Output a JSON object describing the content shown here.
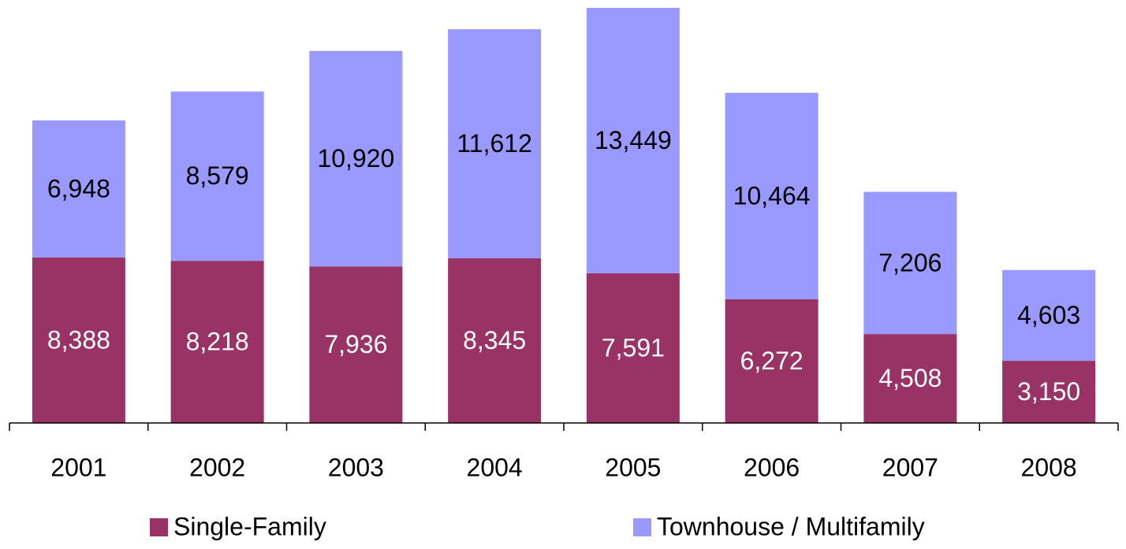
{
  "chart_data": {
    "type": "stacked_bar",
    "categories": [
      "2001",
      "2002",
      "2003",
      "2004",
      "2005",
      "2006",
      "2007",
      "2008"
    ],
    "series": [
      {
        "name": "Single-Family",
        "color": "#993366",
        "label_color": "#ffffff",
        "values": [
          8388,
          8218,
          7936,
          8345,
          7591,
          6272,
          4508,
          3150
        ],
        "value_labels": [
          "8,388",
          "8,218",
          "7,936",
          "8,345",
          "7,591",
          "6,272",
          "4,508",
          "3,150"
        ]
      },
      {
        "name": "Townhouse / Multifamily",
        "color": "#9999ff",
        "label_color": "#000000",
        "values": [
          6948,
          8579,
          10920,
          11612,
          13449,
          10464,
          7206,
          4603
        ],
        "value_labels": [
          "6,948",
          "8,579",
          "10,920",
          "11,612",
          "13,449",
          "10,464",
          "7,206",
          "4,603"
        ]
      }
    ],
    "legend": "bottom"
  }
}
